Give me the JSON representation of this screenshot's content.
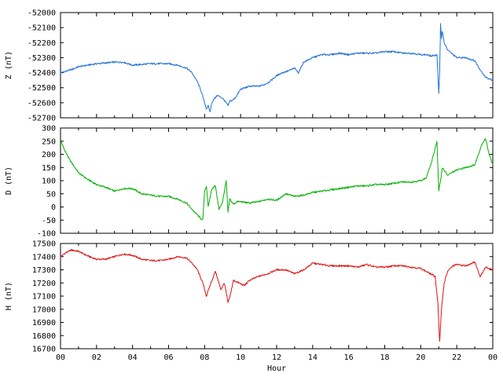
{
  "chart_data": [
    {
      "type": "line",
      "ylabel": "Z (nT)",
      "ylim": [
        -52700,
        -52000
      ],
      "yticks": [
        -52000,
        -52100,
        -52200,
        -52300,
        -52400,
        -52500,
        -52600,
        -52700
      ],
      "xlim": [
        0,
        24
      ],
      "series": [
        {
          "color": "#1f6fd6",
          "x": [
            0,
            0.3,
            0.6,
            1,
            1.5,
            2,
            2.5,
            3,
            3.5,
            4,
            4.5,
            5,
            5.5,
            6,
            6.5,
            7,
            7.3,
            7.6,
            7.8,
            8,
            8.1,
            8.2,
            8.3,
            8.4,
            8.5,
            8.7,
            9,
            9.2,
            9.3,
            9.4,
            9.6,
            9.8,
            10,
            10.5,
            11,
            11.3,
            11.6,
            12,
            12.3,
            12.6,
            13,
            13.2,
            13.5,
            14,
            14.5,
            15,
            15.5,
            16,
            16.5,
            17,
            17.5,
            18,
            18.5,
            19,
            19.5,
            20,
            20.3,
            20.6,
            20.9,
            21,
            21.05,
            21.1,
            21.15,
            21.2,
            21.3,
            21.5,
            22,
            22.5,
            23,
            23.3,
            23.6,
            24
          ],
          "y": [
            -52400,
            -52390,
            -52380,
            -52360,
            -52350,
            -52340,
            -52335,
            -52330,
            -52330,
            -52350,
            -52345,
            -52340,
            -52340,
            -52340,
            -52350,
            -52370,
            -52400,
            -52460,
            -52520,
            -52600,
            -52640,
            -52620,
            -52660,
            -52600,
            -52580,
            -52550,
            -52570,
            -52600,
            -52620,
            -52590,
            -52580,
            -52550,
            -52510,
            -52490,
            -52490,
            -52480,
            -52460,
            -52420,
            -52400,
            -52390,
            -52370,
            -52400,
            -52330,
            -52300,
            -52280,
            -52280,
            -52270,
            -52280,
            -52270,
            -52270,
            -52270,
            -52260,
            -52260,
            -52270,
            -52270,
            -52280,
            -52280,
            -52290,
            -52280,
            -52540,
            -52400,
            -52070,
            -52170,
            -52120,
            -52200,
            -52250,
            -52300,
            -52300,
            -52320,
            -52380,
            -52430,
            -52450
          ]
        }
      ]
    },
    {
      "type": "line",
      "ylabel": "D (nT)",
      "ylim": [
        -100,
        300
      ],
      "yticks": [
        300,
        250,
        200,
        150,
        100,
        50,
        0,
        -50,
        -100
      ],
      "xlim": [
        0,
        24
      ],
      "series": [
        {
          "color": "#00b000",
          "x": [
            0,
            0.2,
            0.5,
            1,
            1.5,
            2,
            2.5,
            3,
            3.5,
            4,
            4.5,
            5,
            5.5,
            6,
            6.5,
            7,
            7.3,
            7.6,
            7.8,
            7.9,
            8,
            8.1,
            8.2,
            8.4,
            8.6,
            8.8,
            9,
            9.2,
            9.3,
            9.4,
            9.6,
            9.8,
            10,
            10.5,
            11,
            11.5,
            12,
            12.5,
            13,
            13.5,
            14,
            14.5,
            15,
            15.5,
            16,
            16.5,
            17,
            17.5,
            18,
            18.5,
            19,
            19.5,
            20,
            20.3,
            20.6,
            20.9,
            21,
            21.1,
            21.2,
            21.5,
            21.7,
            22,
            22.5,
            23,
            23.2,
            23.4,
            23.6,
            23.8,
            24
          ],
          "y": [
            255,
            220,
            180,
            130,
            105,
            85,
            75,
            60,
            70,
            70,
            50,
            45,
            40,
            40,
            30,
            15,
            -10,
            -30,
            -45,
            -50,
            60,
            80,
            0,
            70,
            80,
            -10,
            20,
            100,
            -20,
            30,
            10,
            20,
            20,
            15,
            20,
            30,
            25,
            50,
            40,
            45,
            55,
            60,
            65,
            70,
            75,
            80,
            80,
            85,
            85,
            90,
            95,
            95,
            100,
            110,
            170,
            250,
            60,
            100,
            150,
            120,
            130,
            140,
            150,
            160,
            200,
            240,
            260,
            200,
            160
          ]
        }
      ]
    },
    {
      "type": "line",
      "ylabel": "H (nT)",
      "xlabel": "Hour",
      "ylim": [
        16700,
        17500
      ],
      "yticks": [
        17500,
        17400,
        17300,
        17200,
        17100,
        17000,
        16900,
        16800,
        16700
      ],
      "xlim": [
        0,
        24
      ],
      "xticks": [
        "00",
        "02",
        "04",
        "06",
        "08",
        "10",
        "12",
        "14",
        "16",
        "18",
        "20",
        "22",
        "00"
      ],
      "series": [
        {
          "color": "#e01010",
          "x": [
            0,
            0.3,
            0.6,
            1,
            1.3,
            1.6,
            2,
            2.5,
            3,
            3.5,
            4,
            4.5,
            5,
            5.5,
            6,
            6.5,
            7,
            7.3,
            7.6,
            7.9,
            8.1,
            8.3,
            8.6,
            8.9,
            9.1,
            9.3,
            9.4,
            9.6,
            9.9,
            10.2,
            10.5,
            11,
            11.5,
            12,
            12.5,
            13,
            13.5,
            14,
            14.5,
            15,
            15.5,
            16,
            16.5,
            17,
            17.5,
            18,
            18.5,
            19,
            19.5,
            20,
            20.4,
            20.8,
            20.95,
            21.05,
            21.15,
            21.3,
            21.5,
            21.8,
            22,
            22.5,
            23,
            23.3,
            23.6,
            24
          ],
          "y": [
            17400,
            17430,
            17450,
            17440,
            17420,
            17400,
            17380,
            17380,
            17400,
            17420,
            17410,
            17380,
            17370,
            17370,
            17380,
            17400,
            17390,
            17350,
            17300,
            17200,
            17100,
            17180,
            17290,
            17150,
            17200,
            17050,
            17090,
            17220,
            17200,
            17180,
            17220,
            17250,
            17270,
            17300,
            17300,
            17270,
            17300,
            17350,
            17340,
            17330,
            17330,
            17330,
            17320,
            17340,
            17320,
            17320,
            17330,
            17330,
            17320,
            17310,
            17280,
            17250,
            17050,
            16750,
            17000,
            17200,
            17290,
            17330,
            17340,
            17330,
            17360,
            17250,
            17320,
            17300
          ]
        }
      ]
    }
  ]
}
